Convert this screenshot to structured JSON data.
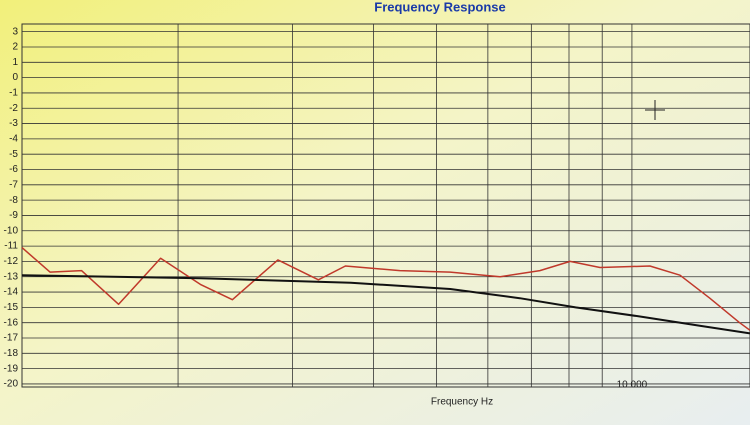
{
  "chart_data": {
    "type": "line",
    "title": "Frequency Response",
    "xlabel": "Frequency Hz",
    "xscale": "log",
    "xlim": [
      1150,
      15200
    ],
    "ylim": [
      -20.2,
      3.5
    ],
    "xticks": [
      {
        "value": 10000,
        "label": "10 000"
      }
    ],
    "xgrid": [
      2000,
      3000,
      4000,
      5000,
      6000,
      7000,
      8000,
      9000
    ],
    "yticks": [
      3,
      2,
      1,
      0,
      -1,
      -2,
      -3,
      -4,
      -5,
      -6,
      -7,
      -8,
      -9,
      -10,
      -11,
      -12,
      -13,
      -14,
      -15,
      -16,
      -17,
      -18,
      -19,
      -20
    ],
    "grid": true,
    "series": [
      {
        "color": "#c0392b",
        "x": [
          1150,
          1270,
          1420,
          1620,
          1880,
          2165,
          2425,
          2850,
          3290,
          3620,
          4390,
          5250,
          6265,
          7215,
          8030,
          8930,
          10660,
          11860,
          13180,
          14650,
          15200
        ],
        "values": [
          -11.1,
          -12.7,
          -12.6,
          -14.8,
          -11.8,
          -13.5,
          -14.5,
          -11.9,
          -13.2,
          -12.3,
          -12.6,
          -12.7,
          -13.0,
          -12.6,
          -12.0,
          -12.4,
          -12.3,
          -12.9,
          -14.4,
          -16.0,
          -16.5
        ]
      },
      {
        "color": "#111111",
        "x": [
          1150,
          2165,
          3690,
          5250,
          6720,
          8190,
          10290,
          12720,
          15200
        ],
        "values": [
          -12.9,
          -13.1,
          -13.4,
          -13.8,
          -14.4,
          -15.0,
          -15.6,
          -16.2,
          -16.7
        ]
      }
    ]
  }
}
